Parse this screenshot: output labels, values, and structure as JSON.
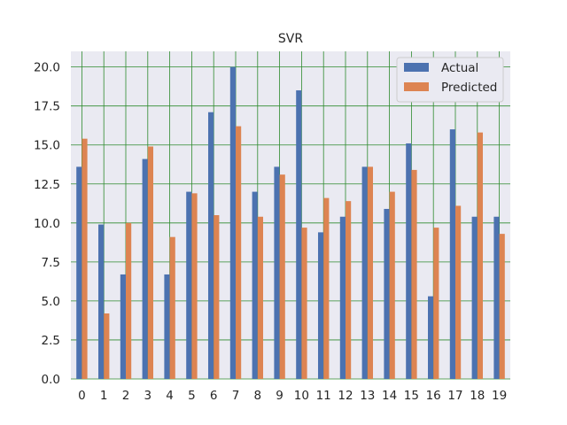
{
  "chart_data": {
    "type": "bar",
    "title": "SVR",
    "xlabel": "",
    "ylabel": "",
    "categories": [
      "0",
      "1",
      "2",
      "3",
      "4",
      "5",
      "6",
      "7",
      "8",
      "9",
      "10",
      "11",
      "12",
      "13",
      "14",
      "15",
      "16",
      "17",
      "18",
      "19"
    ],
    "series": [
      {
        "name": "Actual",
        "color": "#4c72b0",
        "values": [
          13.6,
          9.9,
          6.7,
          14.1,
          6.7,
          12.0,
          17.1,
          20.0,
          12.0,
          13.6,
          18.5,
          9.4,
          10.4,
          13.6,
          10.9,
          15.1,
          5.3,
          16.0,
          10.4,
          10.4
        ]
      },
      {
        "name": "Predicted",
        "color": "#dd8452",
        "values": [
          15.4,
          4.2,
          10.0,
          14.9,
          9.1,
          11.9,
          10.5,
          16.2,
          10.4,
          13.1,
          9.7,
          11.6,
          11.4,
          13.6,
          12.0,
          13.4,
          9.7,
          11.1,
          15.8,
          9.3
        ]
      }
    ],
    "ylim": [
      0,
      21
    ],
    "yticks": [
      0.0,
      2.5,
      5.0,
      7.5,
      10.0,
      12.5,
      15.0,
      17.5,
      20.0
    ],
    "ytick_labels": [
      "0.0",
      "2.5",
      "5.0",
      "7.5",
      "10.0",
      "12.5",
      "15.0",
      "17.5",
      "20.0"
    ],
    "grid": true,
    "grid_color": "#2e8b2e",
    "background_color": "#eaeaf2",
    "legend_position": "top-right"
  }
}
